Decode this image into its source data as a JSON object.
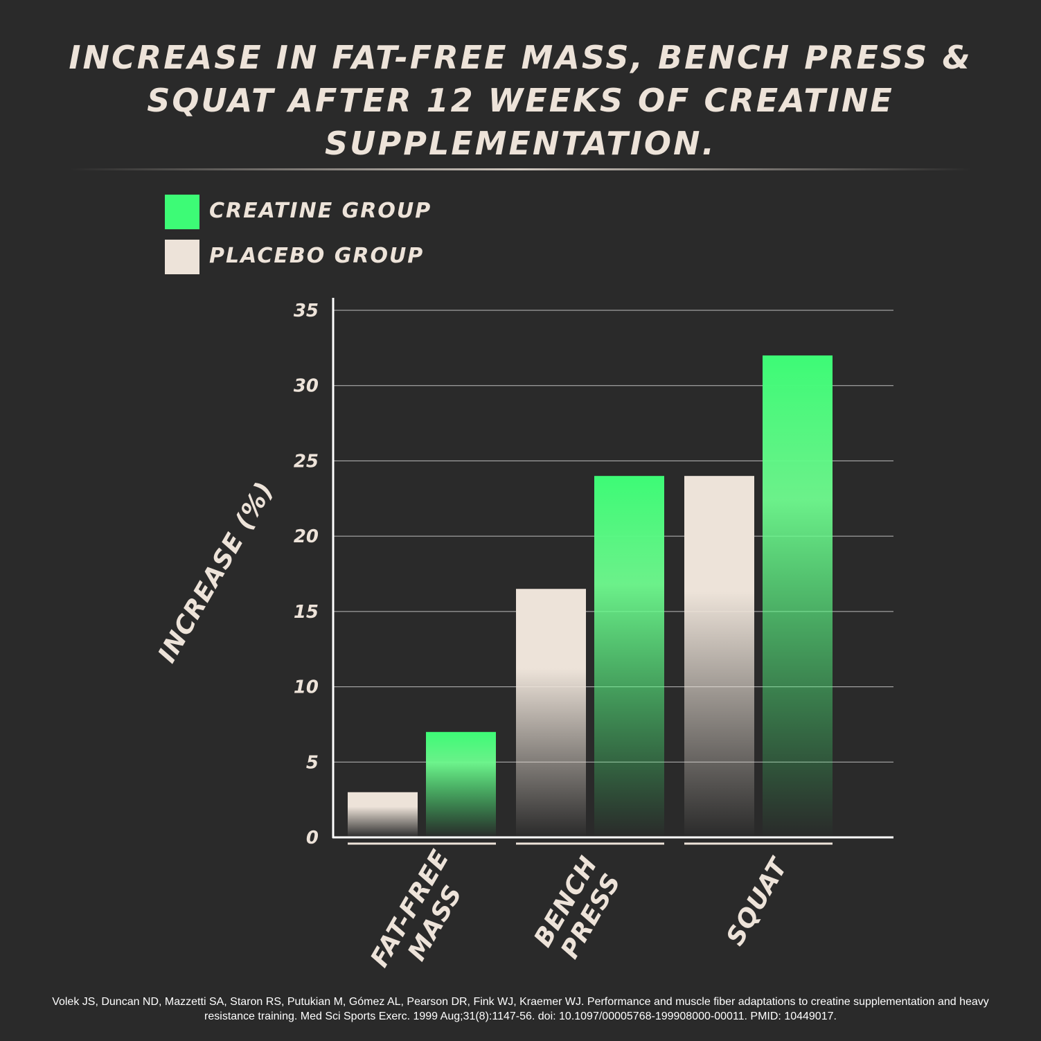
{
  "title": "Increase in fat-free mass, bench press & squat after 12 weeks of creatine supplementation.",
  "legend": [
    {
      "label": "Creatine Group",
      "color": "#3dfb76"
    },
    {
      "label": "Placebo Group",
      "color": "#ede3d9"
    }
  ],
  "citation": "Volek JS, Duncan ND, Mazzetti SA, Staron RS, Putukian M, Gómez AL, Pearson DR, Fink WJ, Kraemer WJ. Performance and muscle fiber adaptations to creatine supplementation and heavy resistance training. Med Sci Sports Exerc. 1999 Aug;31(8):1147-56. doi: 10.1097/00005768-199908000-00011. PMID: 10449017.",
  "chart_data": {
    "type": "bar",
    "title": "Increase in fat-free mass, bench press & squat after 12 weeks of creatine supplementation.",
    "ylabel": "Increase (%)",
    "xlabel": "",
    "ylim": [
      0,
      35
    ],
    "yticks": [
      0,
      5,
      10,
      15,
      20,
      25,
      30,
      35
    ],
    "grid": true,
    "legend_position": "top-left",
    "categories": [
      [
        "Fat-Free",
        "Mass"
      ],
      [
        "Bench",
        "Press"
      ],
      [
        "Squat"
      ]
    ],
    "series": [
      {
        "name": "Placebo Group",
        "color": "#ede3d9",
        "values": [
          3,
          16.5,
          24
        ]
      },
      {
        "name": "Creatine Group",
        "color": "#3dfb76",
        "values": [
          7,
          24,
          32
        ]
      }
    ]
  }
}
